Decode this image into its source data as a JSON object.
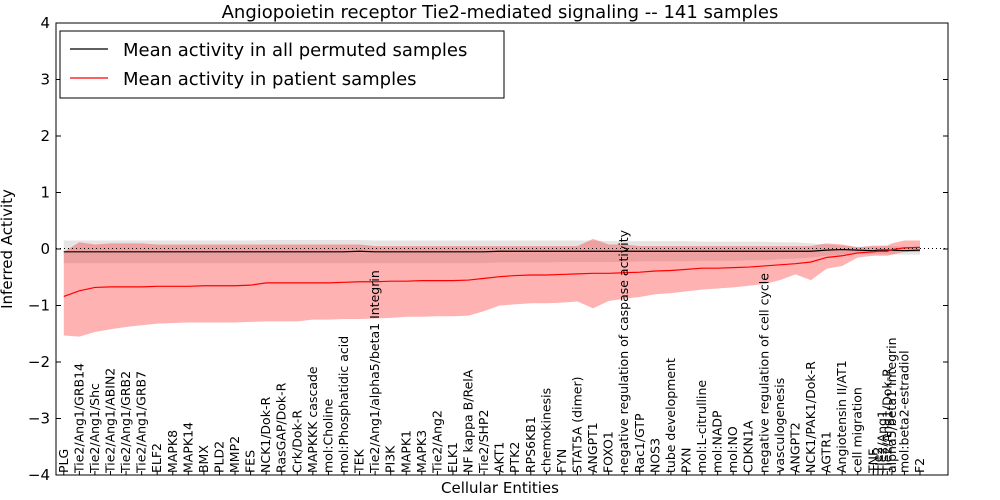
{
  "chart_data": {
    "type": "line",
    "title": "Angiopoietin receptor Tie2-mediated signaling -- 141 samples",
    "xlabel": "Cellular Entities",
    "ylabel": "Inferred Activity",
    "ylim": [
      -4,
      4
    ],
    "yticks": [
      -4,
      -3,
      -2,
      -1,
      0,
      1,
      2,
      3,
      4
    ],
    "ytick_labels": [
      "−4",
      "−3",
      "−2",
      "−1",
      "0",
      "1",
      "2",
      "3",
      "4"
    ],
    "legend": {
      "placement": "top-left",
      "entries": [
        {
          "label": "Mean activity in all permuted samples",
          "color": "#000000"
        },
        {
          "label": "Mean activity in patient samples",
          "color": "#ff0000"
        }
      ]
    },
    "categories": [
      "PLG",
      "Tie2/Ang1/GRB14",
      "Tie2/Ang1/Shc",
      "Tie2/Ang1/ABIN2",
      "Tie2/Ang1/GRB2",
      "Tie2/Ang1/GRB7",
      "ELF2",
      "MAPK8",
      "MAPK14",
      "BMX",
      "PLD2",
      "MMP2",
      "FES",
      "NCK1/Dok-R",
      "RasGAP/Dok-R",
      "Crk/Dok-R",
      "MAPKKK cascade",
      "mol:Choline",
      "mol:Phosphatidic acid",
      "TEK",
      "Tie2/Ang1/alpha5/beta1 Integrin",
      "PI3K",
      "MAPK1",
      "MAPK3",
      "Tie2/Ang2",
      "ELK1",
      "NF kappa B/RelA",
      "Tie2/SHP2",
      "AKT1",
      "PTK2",
      "RPS6KB1",
      "chemokinesis",
      "FYN",
      "STAT5A (dimer)",
      "ANGPT1",
      "FOXO1",
      "negative regulation of caspase activity",
      "Rac1/GTP",
      "NOS3",
      "tube development",
      "PXN",
      "mol:L-citrulline",
      "mol:NADP",
      "mol:NO",
      "CDKN1A",
      "negative regulation of cell cycle",
      "vasculogenesis",
      "ANGPT2",
      "NCK1/PAK1/Dok-R",
      "AGTR1",
      "Angiotensin II/AT1",
      "cell migration",
      "TNF",
      "Tie2",
      "Tie2/Ang1",
      "Tie2/Ang1/Dok-R",
      "alpha5/beta1 Integrin",
      "mol:beta2-estradiol",
      "F2"
    ],
    "x": [
      0,
      1,
      2,
      3,
      4,
      5,
      6,
      7,
      8,
      9,
      10,
      11,
      12,
      13,
      14,
      15,
      16,
      17,
      18,
      19,
      20,
      21,
      22,
      23,
      24,
      25,
      26,
      27,
      28,
      29,
      30,
      31,
      32,
      33,
      34,
      35,
      36,
      37,
      38,
      39,
      40,
      41,
      42,
      43,
      44,
      45,
      46,
      47,
      48,
      49,
      50,
      51,
      52,
      52.3,
      52.6,
      52.9,
      53.2,
      54,
      55
    ],
    "series": [
      {
        "name": "Mean activity in all permuted samples",
        "color": "#000000",
        "values": [
          -0.05,
          -0.05,
          -0.05,
          -0.05,
          -0.05,
          -0.05,
          -0.05,
          -0.05,
          -0.05,
          -0.05,
          -0.05,
          -0.05,
          -0.05,
          -0.05,
          -0.05,
          -0.05,
          -0.05,
          -0.05,
          -0.05,
          -0.04,
          -0.05,
          -0.05,
          -0.05,
          -0.05,
          -0.05,
          -0.05,
          -0.05,
          -0.05,
          -0.04,
          -0.04,
          -0.04,
          -0.04,
          -0.04,
          -0.04,
          -0.04,
          -0.04,
          -0.04,
          -0.04,
          -0.04,
          -0.04,
          -0.04,
          -0.04,
          -0.04,
          -0.04,
          -0.04,
          -0.04,
          -0.04,
          -0.04,
          -0.04,
          -0.02,
          -0.01,
          -0.02,
          -0.03,
          -0.02,
          -0.02,
          -0.02,
          -0.02,
          -0.03,
          -0.02
        ],
        "band_upper": [
          0.15,
          0.15,
          0.15,
          0.15,
          0.15,
          0.15,
          0.15,
          0.15,
          0.15,
          0.15,
          0.15,
          0.15,
          0.15,
          0.16,
          0.16,
          0.16,
          0.16,
          0.16,
          0.16,
          0.16,
          0.15,
          0.15,
          0.15,
          0.15,
          0.15,
          0.15,
          0.15,
          0.15,
          0.15,
          0.15,
          0.15,
          0.15,
          0.15,
          0.15,
          0.15,
          0.14,
          0.14,
          0.14,
          0.14,
          0.14,
          0.14,
          0.13,
          0.13,
          0.13,
          0.13,
          0.13,
          0.12,
          0.12,
          0.1,
          0.08,
          0.06,
          0.04,
          0.04,
          0.04,
          0.05,
          0.05,
          0.05,
          0.04,
          0.04
        ],
        "band_lower": [
          -0.25,
          -0.25,
          -0.25,
          -0.25,
          -0.25,
          -0.25,
          -0.25,
          -0.25,
          -0.25,
          -0.25,
          -0.25,
          -0.25,
          -0.25,
          -0.25,
          -0.25,
          -0.25,
          -0.25,
          -0.25,
          -0.25,
          -0.25,
          -0.25,
          -0.25,
          -0.25,
          -0.25,
          -0.25,
          -0.25,
          -0.25,
          -0.25,
          -0.24,
          -0.24,
          -0.24,
          -0.24,
          -0.23,
          -0.23,
          -0.23,
          -0.23,
          -0.23,
          -0.22,
          -0.22,
          -0.22,
          -0.22,
          -0.21,
          -0.21,
          -0.21,
          -0.2,
          -0.2,
          -0.18,
          -0.17,
          -0.15,
          -0.12,
          -0.1,
          -0.09,
          -0.09,
          -0.09,
          -0.09,
          -0.09,
          -0.1,
          -0.1,
          -0.1
        ]
      },
      {
        "name": "Mean activity in patient samples",
        "color": "#ff0000",
        "values": [
          -0.84,
          -0.74,
          -0.68,
          -0.67,
          -0.67,
          -0.67,
          -0.66,
          -0.66,
          -0.66,
          -0.65,
          -0.65,
          -0.65,
          -0.64,
          -0.6,
          -0.6,
          -0.6,
          -0.6,
          -0.6,
          -0.59,
          -0.58,
          -0.58,
          -0.57,
          -0.57,
          -0.56,
          -0.56,
          -0.56,
          -0.55,
          -0.52,
          -0.49,
          -0.47,
          -0.46,
          -0.46,
          -0.45,
          -0.44,
          -0.43,
          -0.43,
          -0.42,
          -0.41,
          -0.39,
          -0.38,
          -0.36,
          -0.34,
          -0.34,
          -0.33,
          -0.32,
          -0.3,
          -0.28,
          -0.26,
          -0.23,
          -0.15,
          -0.12,
          -0.07,
          -0.05,
          -0.04,
          -0.04,
          -0.04,
          -0.01,
          0.02,
          0.03
        ],
        "band_upper": [
          -0.05,
          0.12,
          0.08,
          0.1,
          0.1,
          0.1,
          0.08,
          0.08,
          0.08,
          0.08,
          0.08,
          0.08,
          0.08,
          0.08,
          0.08,
          0.08,
          0.08,
          0.08,
          0.08,
          0.08,
          0.05,
          0.05,
          0.05,
          0.05,
          0.05,
          0.05,
          0.05,
          0.05,
          0.05,
          0.05,
          0.05,
          0.05,
          0.05,
          0.05,
          0.18,
          0.08,
          0.08,
          0.05,
          0.05,
          0.05,
          0.05,
          0.05,
          0.05,
          0.05,
          0.05,
          0.05,
          0.05,
          0.05,
          0.05,
          0.1,
          0.08,
          0.03,
          0.06,
          0.06,
          0.06,
          0.06,
          0.1,
          0.15,
          0.15
        ],
        "band_lower": [
          -1.53,
          -1.55,
          -1.47,
          -1.42,
          -1.38,
          -1.35,
          -1.32,
          -1.31,
          -1.3,
          -1.3,
          -1.3,
          -1.3,
          -1.29,
          -1.28,
          -1.28,
          -1.28,
          -1.25,
          -1.25,
          -1.24,
          -1.24,
          -1.23,
          -1.22,
          -1.2,
          -1.2,
          -1.19,
          -1.19,
          -1.18,
          -1.1,
          -1.0,
          -0.98,
          -0.96,
          -0.96,
          -0.95,
          -0.93,
          -1.05,
          -0.92,
          -0.88,
          -0.85,
          -0.8,
          -0.78,
          -0.75,
          -0.72,
          -0.7,
          -0.68,
          -0.65,
          -0.62,
          -0.55,
          -0.45,
          -0.55,
          -0.35,
          -0.3,
          -0.15,
          -0.12,
          -0.12,
          -0.12,
          -0.12,
          -0.1,
          -0.05,
          -0.05
        ]
      }
    ]
  }
}
